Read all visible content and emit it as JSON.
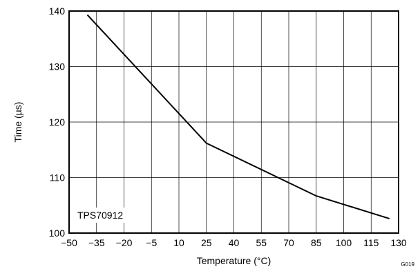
{
  "chart_data": {
    "type": "line",
    "xlabel": "Temperature (°C)",
    "ylabel": "Time (µs)",
    "xlim": [
      -50,
      130
    ],
    "ylim": [
      100,
      140
    ],
    "xticks": [
      -50,
      -35,
      -20,
      -5,
      10,
      25,
      40,
      55,
      70,
      85,
      100,
      115,
      130
    ],
    "xtick_labels": [
      "−50",
      "−35",
      "−20",
      "−5",
      "10",
      "25",
      "40",
      "55",
      "70",
      "85",
      "100",
      "115",
      "130"
    ],
    "yticks": [
      100,
      110,
      120,
      130,
      140
    ],
    "grid": true,
    "annotation": "TPS70912",
    "figure_id": "G019",
    "series": [
      {
        "x": [
          -40,
          25,
          85,
          125
        ],
        "y": [
          139.3,
          116.2,
          106.7,
          102.6
        ]
      }
    ]
  }
}
